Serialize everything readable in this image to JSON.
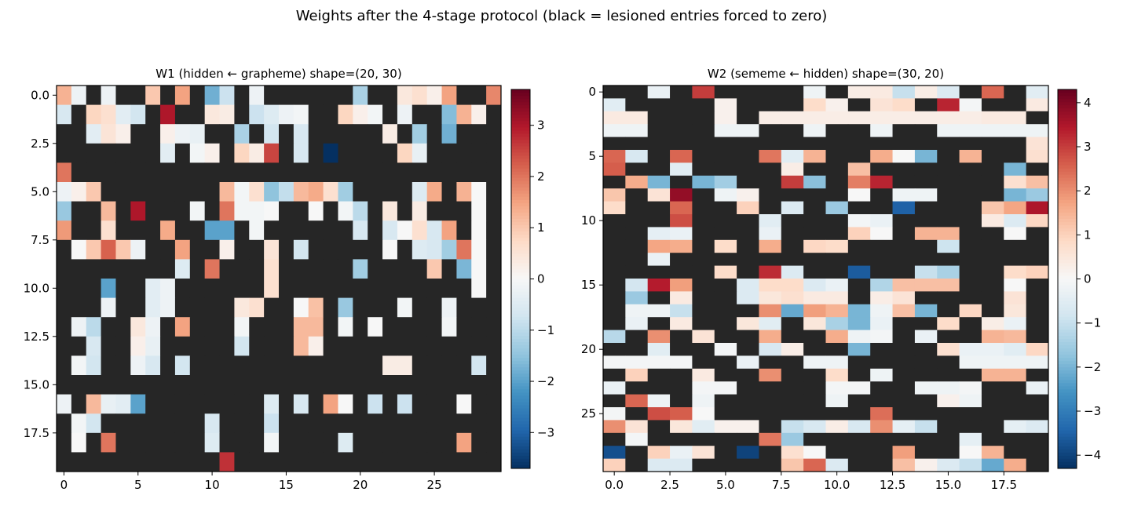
{
  "suptitle": "Weights after the 4-stage protocol (black = lesioned entries forced to zero)",
  "colors": {
    "lesioned": "#262626",
    "cmap": "RdBu_r",
    "axis": "#000000"
  },
  "chart_data": [
    {
      "type": "heatmap",
      "title": "W1 (hidden ← grapheme)  shape=(20, 30)",
      "rows": 20,
      "cols": 30,
      "xticks": [
        0,
        5,
        10,
        15,
        20,
        25
      ],
      "xtick_labels": [
        "0",
        "5",
        "10",
        "15",
        "20",
        "25"
      ],
      "yticks": [
        0,
        2.5,
        5,
        7.5,
        10,
        12.5,
        15,
        17.5
      ],
      "ytick_labels": [
        "0.0",
        "2.5",
        "5.0",
        "7.5",
        "10.0",
        "12.5",
        "15.0",
        "17.5"
      ],
      "vmin": -3.7,
      "vmax": 3.7,
      "colorbar_ticks": [
        -3,
        -2,
        -1,
        0,
        1,
        2,
        3
      ],
      "colorbar_labels": [
        "−3",
        "−2",
        "−1",
        "0",
        "1",
        "2",
        "3"
      ],
      "lesioned_symbol": "X",
      "values": [
        "1.3 -0.2 X -0.2 X X 1.0 X 1.5 X -1.8 -0.8 X -0.2 X X X X X X -1.2 X X 0.4 0.6 0.2 1.5 X X 1.8",
        "-0.6 X 0.8 0.6 -0.4 -0.7 X 3.0 X X 0.4 0.3 X -0.8 -0.5 -0.2 -0.1 X X 0.8 0.2 -0.1 X -0.2 X X -1.6 1.3 0.2 X",
        "X X -0.4 0.5 0.2 X X 0.2 -0.2 -0.3 X X -1.2 X -0.7 X -0.6 X X X X X 0.3 X -1.3 X -1.8 X X X",
        "X X X X X X X -0.4 X -0.1 0.2 X 0.8 0.3 2.5 X -0.6 X -3.7 X X X X 0.8 -0.3 X X X X X",
        "2.0 X X X X X X X X X X X X X X X X X X X X X X X X X X X X X",
        "-0.2 0.2 1.0 X X X X X X X X 1.2 -0.1 0.6 -1.5 -0.9 1.2 1.4 0.6 -1.3 X X X X -0.5 1.4 X 1.3 0.0 X",
        "-1.4 X X 1.2 X 3.0 X X X -0.1 X 2.0 -0.1 -0.1 0.0 X X 0.0 X -0.1 -1.0 X 0.4 X 0.3 X X X 0.0 X",
        "1.6 X X 0.6 X X X 1.4 X X -2.0 -2.0 X -0.1 X X X X X X -0.6 X -0.6 0.0 0.6 -0.6 1.5 X 0.0 X",
        "X 0.0 1.0 2.2 1.0 -0.2 X X 1.5 X X 0.2 X X 0.5 X -0.7 X X X X X 0.0 X -0.5 -0.6 -1.3 2.0 0.0 X",
        "X X X X X X X X -0.5 X 2.0 X X X 0.6 X X X X X -1.3 X X X X 1.0 X -1.7 0.0 X",
        "X X X -2.0 X X -0.4 -0.2 X X X X X X 0.6 X X X X X X X X X X X X X 0.0 X",
        "X X X -0.2 X X -0.4 -0.2 X X X X 0.4 0.6 X X 0.0 1.1 X -1.4 X X X -0.1 X X -0.2 X X X",
        "X -0.2 -1.0 X X 0.4 -0.2 X 1.5 X X X -0.1 X X X 1.2 1.2 X -0.1 X 0.0 X X X X -0.1 X X X",
        "X X -0.6 X X 0.2 -0.3 X X X X X -0.7 X X X 1.2 0.2 X X X X X X X X X X X X",
        "X -0.1 -0.7 X X -0.2 -0.6 X -0.7 X X X X X X X X X X X X X 0.3 0.3 X X X X -0.7 X",
        "X X X X X X X X X X X X X X X X X X X X X X X X X X X X X X",
        "-0.2 X 1.2 -0.3 -0.4 -2.0 X X X X X X X X -0.5 X -0.6 X 1.5 0.0 X -0.8 X -0.8 X X X 0.0 X X",
        "X -0.1 -0.7 X X X X X X X -0.6 X X X -0.8 X X X X X X X X X X X X X X X",
        "X 0.0 X 2.0 X X X X X X -0.5 X X X -0.1 X X X X -0.5 X X X X X X X 1.5 X X",
        "X X X X X X X X X X X 2.7 X X X X X X X X X X X X X X X X X X"
      ]
    },
    {
      "type": "heatmap",
      "title": "W2 (sememe ← hidden)  shape=(30, 20)",
      "rows": 30,
      "cols": 20,
      "xticks": [
        0,
        2.5,
        5,
        7.5,
        10,
        12.5,
        15,
        17.5
      ],
      "xtick_labels": [
        "0.0",
        "2.5",
        "5.0",
        "7.5",
        "10.0",
        "12.5",
        "15.0",
        "17.5"
      ],
      "yticks": [
        0,
        5,
        10,
        15,
        20,
        25
      ],
      "ytick_labels": [
        "0",
        "5",
        "10",
        "15",
        "20",
        "25"
      ],
      "vmin": -4.3,
      "vmax": 4.3,
      "colorbar_ticks": [
        -4,
        -3,
        -2,
        -1,
        0,
        1,
        2,
        3,
        4
      ],
      "colorbar_labels": [
        "−4",
        "−3",
        "−2",
        "−1",
        "0",
        "1",
        "2",
        "3",
        "4"
      ],
      "lesioned_symbol": "X",
      "values": [
        "X X -0.3 X 3.0 X X X X -0.2 X 0.3 0.4 -1.0 0.3 -0.6 X 2.5 X -0.5",
        "-0.5 X X X X 0.2 X X X 0.8 0.2 X 0.6 0.8 X 3.3 -0.1 X X 0.4",
        "0.4 0.4 X X X 0.2 X 0.3 0.3 0.3 0.3 0.3 0.3 0.3 0.3 0.3 0.3 0.4 0.4 X",
        "-0.2 -0.2 X X X -0.2 -0.2 X X -0.2 X X -0.2 X X -0.2 -0.2 -0.2 -0.2 -0.2",
        "X X X X X X X X X X X X X X X X X X X 0.6",
        "2.5 -0.7 X 2.5 X X X 2.3 -0.5 1.5 X X 1.6 0.0 -2.0 X 1.5 X X 0.7",
        "2.6 X X -0.5 X X X X 0.3 X X 1.3 X X X X X X -2.0 X",
        "X 1.6 -2.0 X -2.0 -1.5 X X 3.0 -1.8 X 2.2 3.3 X X X X X 0.7 1.3",
        "1.2 X 0.6 3.8 X -0.2 0.2 X X X X 0.0 X -0.2 -0.2 X X X -2.0 -1.6",
        "0.8 X X 2.5 X X 1.0 X -0.6 X -1.6 X X -3.5 X X X 1.2 1.7 3.5",
        "X X X 2.8 X X X -0.5 X X X -0.1 -0.3 X X X X 0.4 -0.6 0.9",
        "X X -0.4 -0.3 X X X -0.3 X X X 1.0 0.0 X 1.5 1.5 X X 0.0 X",
        "X X 1.7 1.6 X 0.8 X 1.6 X 0.9 0.8 X X X X -0.9 X X X X",
        "X X -0.3 X X X X X X X X X X X X X X X X X",
        "X X X X X 0.8 X 3.2 -0.6 X X -3.6 X X -1.0 -1.4 X X 0.8 1.0",
        "X -0.8 3.4 1.8 X X -0.6 0.8 0.8 -0.6 -0.3 X -1.3 1.3 1.3 1.3 X X 0.0 X",
        "X -1.6 X 0.4 X X -0.6 0.5 0.7 0.4 0.4 X 0.3 0.6 X X X X 0.6 X",
        "X -0.2 -0.2 -1.0 X X X 2.0 -2.2 1.8 1.5 -2.0 -0.2 1.3 -2.0 X 0.9 X 0.5 X",
        "X -0.3 X 0.4 X X 0.5 -0.5 X 0.5 -1.4 -2.0 -0.3 X X 0.8 X 0.3 -0.3 X",
        "-1.2 X 2.0 X 0.6 X X 1.6 X X 1.6 -0.2 -0.1 X -0.3 X X 1.5 1.4 X",
        "X X -0.5 X X -0.1 X -0.7 0.3 X X -2.0 X X X 0.7 -0.3 -0.3 -0.5 0.9",
        "-0.1 -0.1 -0.1 -0.1 X X -0.3 X X -0.2 -0.2 X X X X X -0.2 -0.2 -0.2 -0.2",
        "X 1.0 X X 0.4 X X 2.0 X X 0.8 X -0.2 X X X X 1.5 1.5 X",
        "-0.3 X X X -0.1 -0.1 X X X X -0.1 -0.1 X X -0.2 -0.2 -0.1 X X -0.3",
        "X 2.5 -0.2 X -0.2 X X X X X -0.2 X X X X 0.2 -0.2 X X X",
        "-0.1 X 2.8 2.6 0.0 X X X X X X X 2.4 X X X X X X X",
        "2.0 0.6 X 0.5 -0.5 0.2 0.2 X -1.0 -0.7 0.3 -0.7 2.0 -0.4 -1.0 X X X -0.4 -0.6",
        "X -0.1 X X X X X 2.3 -1.6 X X X X X X X -0.4 X X X",
        "-3.8 X 1.0 -0.3 0.6 X -4.0 X 0.7 0.0 X X X 1.8 X X 0.0 1.5 X X",
        "1.0 X -0.6 -0.6 X X X X 1.2 2.5 -0.6 X X 1.3 0.2 -0.6 -1.0 -2.2 1.6 X"
      ]
    }
  ]
}
